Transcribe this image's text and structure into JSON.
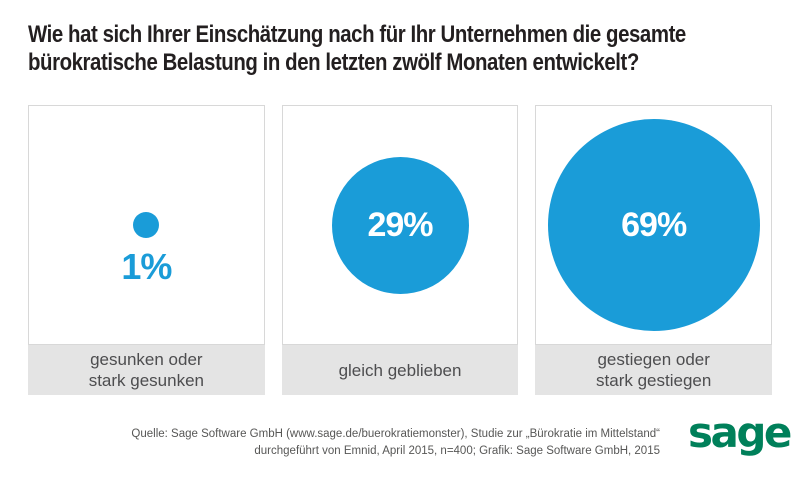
{
  "header": {
    "title_lines": [
      "Wie hat sich Ihrer Einschätzung nach für Ihr Unternehmen die gesamte",
      "bürokratische Belastung in den letzten zwölf Monaten entwickelt?"
    ]
  },
  "chart_data": {
    "type": "bar",
    "variant": "proportional-circles",
    "title": "Wie hat sich Ihrer Einschätzung nach für Ihr Unternehmen die gesamte bürokratische Belastung in den letzten zwölf Monaten entwickelt?",
    "categories": [
      "gesunken oder stark gesunken",
      "gleich geblieben",
      "gestiegen oder stark gestiegen"
    ],
    "category_lines": [
      [
        "gesunken oder",
        "stark gesunken"
      ],
      [
        "gleich geblieben"
      ],
      [
        "gestiegen oder",
        "stark gestiegen"
      ]
    ],
    "values": [
      1,
      29,
      69
    ],
    "value_labels": [
      "1%",
      "29%",
      "69%"
    ],
    "unit": "%",
    "legend": "none",
    "grid": false
  },
  "footer": {
    "source_lines": [
      "Quelle: Sage Software GmbH (www.sage.de/buerokratiemonster), Studie zur „Bürokratie im Mittelstand“",
      "durchgeführt von Emnid, April 2015, n=400; Grafik: Sage Software GmbH, 2015"
    ],
    "logo_text": "sage"
  },
  "theme": {
    "circle_blue": "#1A9CD8",
    "logo_green": "#00805A",
    "label_bar_gray": "#E4E4E4",
    "panel_border_gray": "#D8D8D8",
    "title_color": "#231F20",
    "label_text_color": "#4D4D4F",
    "source_text_color": "#575756",
    "percent_text_white": "#FFFFFF"
  }
}
